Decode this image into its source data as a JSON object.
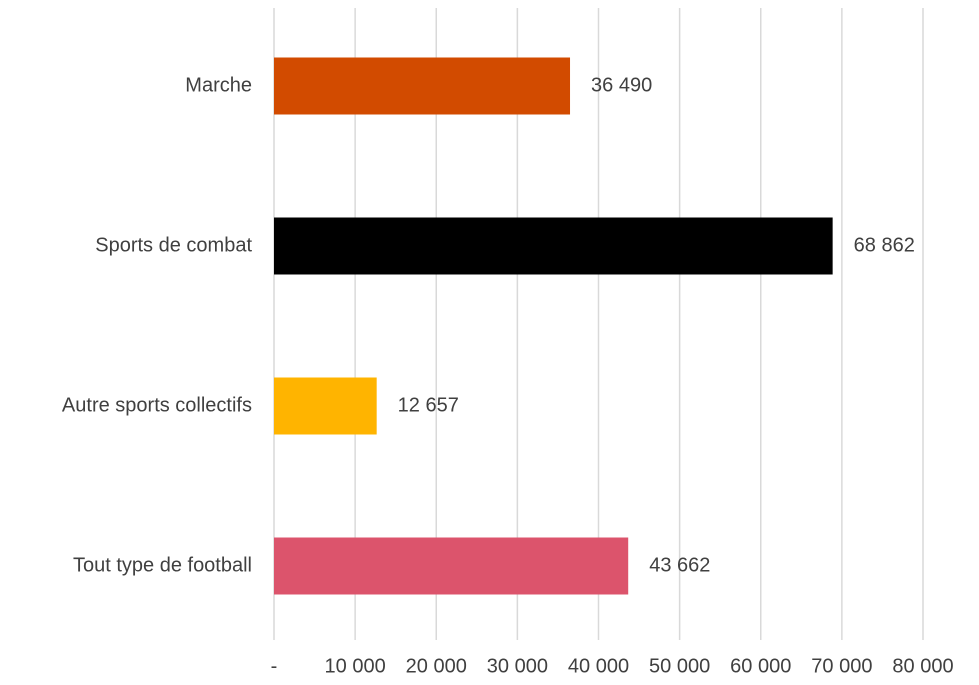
{
  "chart_data": {
    "type": "bar",
    "orientation": "horizontal",
    "title": "",
    "xlabel": "",
    "ylabel": "",
    "categories": [
      "Marche",
      "Sports de combat",
      "Autre sports collectifs",
      "Tout type de football"
    ],
    "values": [
      36490,
      68862,
      12657,
      43662
    ],
    "value_labels": [
      "36 490",
      "68 862",
      "12 657",
      "43 662"
    ],
    "colors": [
      "#d24b00",
      "#000000",
      "#ffb400",
      "#dc546c"
    ],
    "xlim": [
      0,
      80000
    ],
    "x_ticks": [
      0,
      10000,
      20000,
      30000,
      40000,
      50000,
      60000,
      70000,
      80000
    ],
    "x_tick_labels": [
      "-",
      "10 000",
      "20 000",
      "30 000",
      "40 000",
      "50 000",
      "60 000",
      "70 000",
      "80 000"
    ],
    "grid": "vertical",
    "legend": "none"
  }
}
